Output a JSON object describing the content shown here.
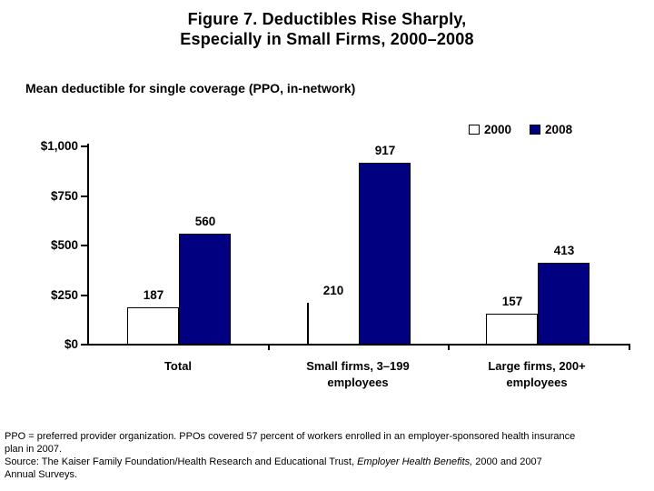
{
  "slide": {
    "title_line1": "Figure 7. Deductibles Rise Sharply,",
    "title_line2": "Especially in Small Firms, 2000–2008",
    "subtitle": "Mean deductible for single coverage (PPO, in-network)"
  },
  "chart_data": {
    "type": "bar",
    "title": "Figure 7. Deductibles Rise Sharply, Especially in Small Firms, 2000–2008",
    "subtitle": "Mean deductible for single coverage (PPO, in-network)",
    "categories": [
      "Total",
      "Small firms, 3–199 employees",
      "Large firms, 200+ employees"
    ],
    "categories_display": [
      [
        "Total"
      ],
      [
        "Small firms, 3–199",
        "employees"
      ],
      [
        "Large firms, 200+",
        "employees"
      ]
    ],
    "series": [
      {
        "name": "2000",
        "color": "#FFFFFF",
        "values": [
          187,
          210,
          157
        ]
      },
      {
        "name": "2008",
        "color": "#000080",
        "values": [
          560,
          917,
          413
        ]
      }
    ],
    "ylim": [
      0,
      1000
    ],
    "ytick_values": [
      0,
      250,
      500,
      750,
      1000
    ],
    "ytick_labels": [
      "$0",
      "$250",
      "$500",
      "$750",
      "$1,000"
    ],
    "grid": false,
    "legend_position": "top-right",
    "bar_value_labels": true,
    "bar_render": [
      [
        "box",
        "left-edge-only",
        "box"
      ],
      [
        "box",
        "box",
        "box"
      ]
    ],
    "accent_color": "#000080"
  },
  "footnote": {
    "line1": "PPO = preferred provider organization. PPOs covered 57 percent of workers enrolled in an employer-sponsored health insurance",
    "line2": "plan in 2007.",
    "source_prefix": "Source: The Kaiser Family Foundation/Health Research and Educational Trust, ",
    "source_italic": "Employer Health Benefits,",
    "source_suffix": " 2000 and 2007",
    "line4": "Annual Surveys."
  }
}
